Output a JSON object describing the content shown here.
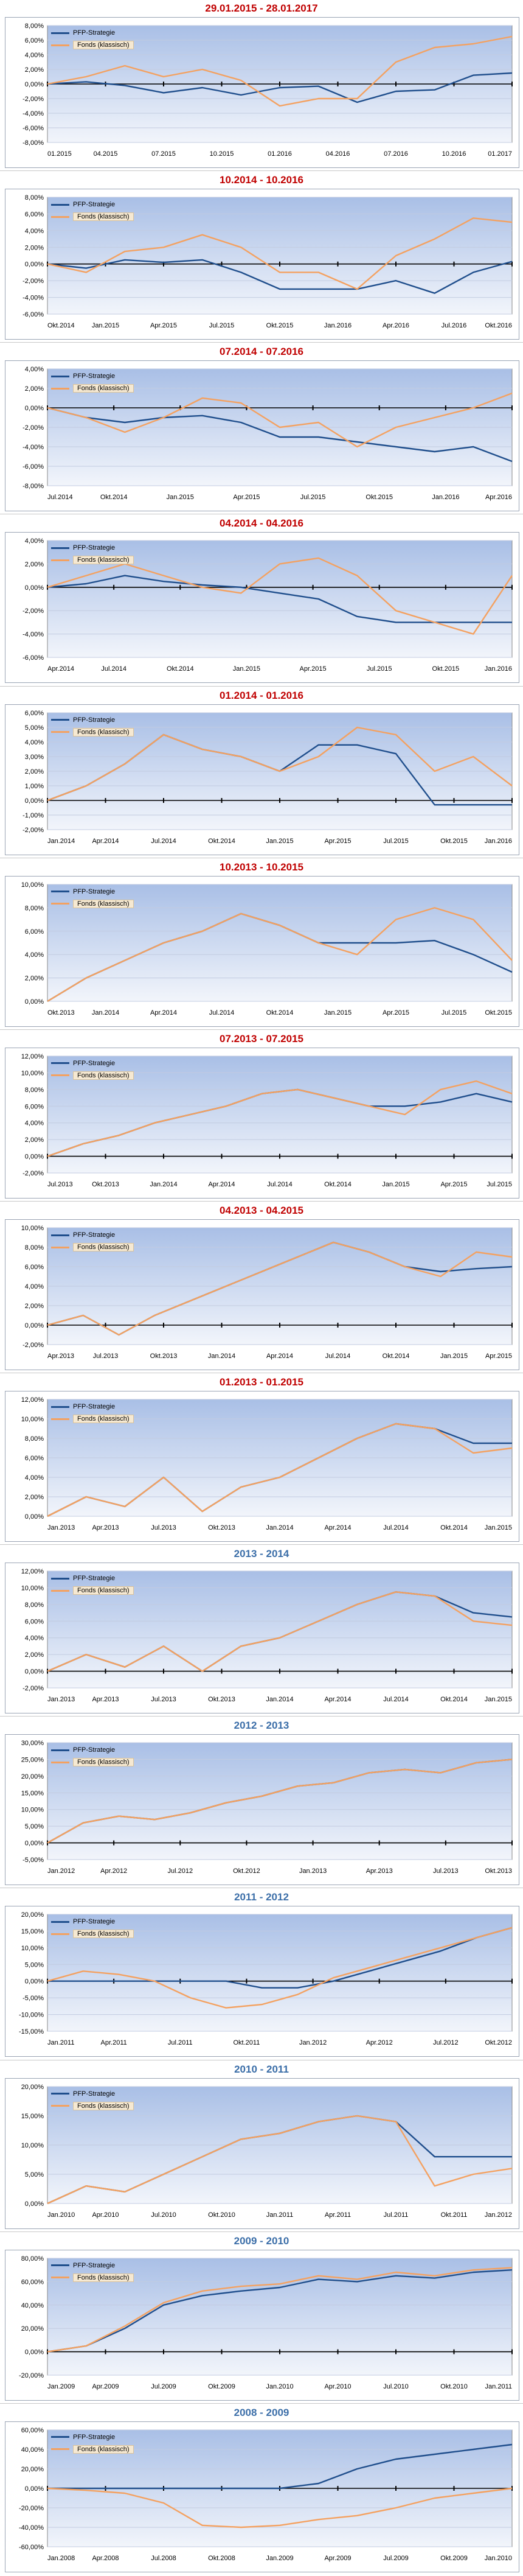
{
  "colors": {
    "strategy": "#1f4e8c",
    "fund": "#f4a160",
    "title_red": "#c00000",
    "title_blue": "#3b6ea8"
  },
  "chart_data": [
    {
      "type": "line",
      "title": "29.01.2015 - 28.01.2017",
      "title_color": "#c00000",
      "x_labels": [
        "01.2015",
        "04.2015",
        "07.2015",
        "10.2015",
        "01.2016",
        "04.2016",
        "07.2016",
        "10.2016",
        "01.2017"
      ],
      "y_ticks": [
        "8,00%",
        "6,00%",
        "4,00%",
        "2,00%",
        "0,00%",
        "-2,00%",
        "-4,00%",
        "-6,00%",
        "-8,00%"
      ],
      "ylim": [
        -8,
        8
      ],
      "zero_line": true,
      "legend": "top-left",
      "series": [
        {
          "name": "PFP-Strategie",
          "values": [
            0,
            0.3,
            -0.2,
            -1.2,
            -0.5,
            -1.5,
            -0.5,
            -0.3,
            -2.5,
            -1,
            -0.8,
            1.2,
            1.5
          ]
        },
        {
          "name": "Fonds (klassisch)",
          "values": [
            0,
            1,
            2.5,
            1,
            2,
            0.5,
            -3,
            -2,
            -2,
            3,
            5,
            5.5,
            6.5
          ]
        }
      ]
    },
    {
      "type": "line",
      "title": "10.2014 - 10.2016",
      "title_color": "#c00000",
      "x_labels": [
        "Okt.2014",
        "Jan.2015",
        "Apr.2015",
        "Jul.2015",
        "Okt.2015",
        "Jan.2016",
        "Apr.2016",
        "Jul.2016",
        "Okt.2016"
      ],
      "y_ticks": [
        "8,00%",
        "6,00%",
        "4,00%",
        "2,00%",
        "0,00%",
        "-2,00%",
        "-4,00%",
        "-6,00%"
      ],
      "ylim": [
        -6,
        8
      ],
      "zero_line": true,
      "legend": "top-left",
      "series": [
        {
          "name": "PFP-Strategie",
          "values": [
            0,
            -0.5,
            0.5,
            0.2,
            0.5,
            -1,
            -3,
            -3,
            -3,
            -2,
            -3.5,
            -1,
            0.3
          ]
        },
        {
          "name": "Fonds (klassisch)",
          "values": [
            0,
            -1,
            1.5,
            2,
            3.5,
            2,
            -1,
            -1,
            -3,
            1,
            3,
            5.5,
            5
          ]
        }
      ]
    },
    {
      "type": "line",
      "title": "07.2014 - 07.2016",
      "title_color": "#c00000",
      "x_labels": [
        "Jul.2014",
        "Okt.2014",
        "Jan.2015",
        "Apr.2015",
        "Jul.2015",
        "Okt.2015",
        "Jan.2016",
        "Apr.2016"
      ],
      "y_ticks": [
        "4,00%",
        "2,00%",
        "0,00%",
        "-2,00%",
        "-4,00%",
        "-6,00%",
        "-8,00%"
      ],
      "ylim": [
        -8,
        4
      ],
      "zero_line": true,
      "legend": "top-left",
      "series": [
        {
          "name": "PFP-Strategie",
          "values": [
            0,
            -1,
            -1.5,
            -1,
            -0.8,
            -1.5,
            -3,
            -3,
            -3.5,
            -4,
            -4.5,
            -4,
            -5.5
          ]
        },
        {
          "name": "Fonds (klassisch)",
          "values": [
            0,
            -1,
            -2.5,
            -1,
            1,
            0.5,
            -2,
            -1.5,
            -4,
            -2,
            -1,
            0,
            1.5
          ]
        }
      ]
    },
    {
      "type": "line",
      "title": "04.2014 - 04.2016",
      "title_color": "#c00000",
      "x_labels": [
        "Apr.2014",
        "Jul.2014",
        "Okt.2014",
        "Jan.2015",
        "Apr.2015",
        "Jul.2015",
        "Okt.2015",
        "Jan.2016"
      ],
      "y_ticks": [
        "4,00%",
        "2,00%",
        "0,00%",
        "-2,00%",
        "-4,00%",
        "-6,00%"
      ],
      "ylim": [
        -6,
        4
      ],
      "zero_line": true,
      "legend": "top-left",
      "series": [
        {
          "name": "PFP-Strategie",
          "values": [
            0,
            0.3,
            1,
            0.5,
            0.2,
            0,
            -0.5,
            -1,
            -2.5,
            -3,
            -3,
            -3,
            -3
          ]
        },
        {
          "name": "Fonds (klassisch)",
          "values": [
            0,
            1,
            2,
            1,
            0,
            -0.5,
            2,
            2.5,
            1,
            -2,
            -3,
            -4,
            1
          ]
        }
      ]
    },
    {
      "type": "line",
      "title": "01.2014 - 01.2016",
      "title_color": "#c00000",
      "x_labels": [
        "Jan.2014",
        "Apr.2014",
        "Jul.2014",
        "Okt.2014",
        "Jan.2015",
        "Apr.2015",
        "Jul.2015",
        "Okt.2015",
        "Jan.2016"
      ],
      "y_ticks": [
        "6,00%",
        "5,00%",
        "4,00%",
        "3,00%",
        "2,00%",
        "1,00%",
        "0,00%",
        "-1,00%",
        "-2,00%"
      ],
      "ylim": [
        -2,
        6
      ],
      "zero_line": true,
      "legend": "top-left",
      "series": [
        {
          "name": "PFP-Strategie",
          "values": [
            0,
            1,
            2.5,
            4.5,
            3.5,
            3,
            2,
            3.8,
            3.8,
            3.2,
            -0.3,
            -0.3,
            -0.3
          ]
        },
        {
          "name": "Fonds (klassisch)",
          "values": [
            0,
            1,
            2.5,
            4.5,
            3.5,
            3,
            2,
            3,
            5,
            4.5,
            2,
            3,
            1
          ]
        }
      ]
    },
    {
      "type": "line",
      "title": "10.2013 - 10.2015",
      "title_color": "#c00000",
      "x_labels": [
        "Okt.2013",
        "Jan.2014",
        "Apr.2014",
        "Jul.2014",
        "Okt.2014",
        "Jan.2015",
        "Apr.2015",
        "Jul.2015",
        "Okt.2015"
      ],
      "y_ticks": [
        "10,00%",
        "8,00%",
        "6,00%",
        "4,00%",
        "2,00%",
        "0,00%"
      ],
      "ylim": [
        0,
        10
      ],
      "zero_line": false,
      "legend": "top-left",
      "series": [
        {
          "name": "PFP-Strategie",
          "values": [
            0,
            2,
            3.5,
            5,
            6,
            7.5,
            6.5,
            5,
            5,
            5,
            5.2,
            4,
            2.5
          ]
        },
        {
          "name": "Fonds (klassisch)",
          "values": [
            0,
            2,
            3.5,
            5,
            6,
            7.5,
            6.5,
            5,
            4,
            7,
            8,
            7,
            3.5
          ]
        }
      ]
    },
    {
      "type": "line",
      "title": "07.2013 - 07.2015",
      "title_color": "#c00000",
      "x_labels": [
        "Jul.2013",
        "Okt.2013",
        "Jan.2014",
        "Apr.2014",
        "Jul.2014",
        "Okt.2014",
        "Jan.2015",
        "Apr.2015",
        "Jul.2015"
      ],
      "y_ticks": [
        "12,00%",
        "10,00%",
        "8,00%",
        "6,00%",
        "4,00%",
        "2,00%",
        "0,00%",
        "-2,00%"
      ],
      "ylim": [
        -2,
        12
      ],
      "zero_line": true,
      "legend": "top-left",
      "series": [
        {
          "name": "PFP-Strategie",
          "values": [
            0,
            1.5,
            2.5,
            4,
            5,
            6,
            7.5,
            8,
            7,
            6,
            6,
            6.5,
            7.5,
            6.5
          ]
        },
        {
          "name": "Fonds (klassisch)",
          "values": [
            0,
            1.5,
            2.5,
            4,
            5,
            6,
            7.5,
            8,
            7,
            6,
            5,
            8,
            9,
            7.5
          ]
        }
      ]
    },
    {
      "type": "line",
      "title": "04.2013 - 04.2015",
      "title_color": "#c00000",
      "x_labels": [
        "Apr.2013",
        "Jul.2013",
        "Okt.2013",
        "Jan.2014",
        "Apr.2014",
        "Jul.2014",
        "Okt.2014",
        "Jan.2015",
        "Apr.2015"
      ],
      "y_ticks": [
        "10,00%",
        "8,00%",
        "6,00%",
        "4,00%",
        "2,00%",
        "0,00%",
        "-2,00%"
      ],
      "ylim": [
        -2,
        10
      ],
      "zero_line": true,
      "legend": "top-left",
      "series": [
        {
          "name": "PFP-Strategie",
          "values": [
            0,
            1,
            -1,
            1,
            2.5,
            4,
            5.5,
            7,
            8.5,
            7.5,
            6,
            5.5,
            5.8,
            6
          ]
        },
        {
          "name": "Fonds (klassisch)",
          "values": [
            0,
            1,
            -1,
            1,
            2.5,
            4,
            5.5,
            7,
            8.5,
            7.5,
            6,
            5,
            7.5,
            7
          ]
        }
      ]
    },
    {
      "type": "line",
      "title": "01.2013 - 01.2015",
      "title_color": "#c00000",
      "x_labels": [
        "Jan.2013",
        "Apr.2013",
        "Jul.2013",
        "Okt.2013",
        "Jan.2014",
        "Apr.2014",
        "Jul.2014",
        "Okt.2014",
        "Jan.2015"
      ],
      "y_ticks": [
        "12,00%",
        "10,00%",
        "8,00%",
        "6,00%",
        "4,00%",
        "2,00%",
        "0,00%"
      ],
      "ylim": [
        0,
        12
      ],
      "zero_line": false,
      "legend": "top-left",
      "series": [
        {
          "name": "PFP-Strategie",
          "values": [
            0,
            2,
            1,
            4,
            0.5,
            3,
            4,
            6,
            8,
            9.5,
            9,
            7.5,
            7.5
          ]
        },
        {
          "name": "Fonds (klassisch)",
          "values": [
            0,
            2,
            1,
            4,
            0.5,
            3,
            4,
            6,
            8,
            9.5,
            9,
            6.5,
            7
          ]
        }
      ]
    },
    {
      "type": "line",
      "title": "2013 - 2014",
      "title_color": "#3b6ea8",
      "x_labels": [
        "Jan.2013",
        "Apr.2013",
        "Jul.2013",
        "Okt.2013",
        "Jan.2014",
        "Apr.2014",
        "Jul.2014",
        "Okt.2014",
        "Jan.2015"
      ],
      "y_ticks": [
        "12,00%",
        "10,00%",
        "8,00%",
        "6,00%",
        "4,00%",
        "2,00%",
        "0,00%",
        "-2,00%"
      ],
      "ylim": [
        -2,
        12
      ],
      "zero_line": true,
      "legend": "top-left",
      "series": [
        {
          "name": "PFP-Strategie",
          "values": [
            0,
            2,
            0.5,
            3,
            0,
            3,
            4,
            6,
            8,
            9.5,
            9,
            7,
            6.5
          ]
        },
        {
          "name": "Fonds (klassisch)",
          "values": [
            0,
            2,
            0.5,
            3,
            0,
            3,
            4,
            6,
            8,
            9.5,
            9,
            6,
            5.5
          ]
        }
      ]
    },
    {
      "type": "line",
      "title": "2012 - 2013",
      "title_color": "#3b6ea8",
      "x_labels": [
        "Jan.2012",
        "Apr.2012",
        "Jul.2012",
        "Okt.2012",
        "Jan.2013",
        "Apr.2013",
        "Jul.2013",
        "Okt.2013"
      ],
      "y_ticks": [
        "30,00%",
        "25,00%",
        "20,00%",
        "15,00%",
        "10,00%",
        "5,00%",
        "0,00%",
        "-5,00%"
      ],
      "ylim": [
        -5,
        30
      ],
      "zero_line": true,
      "legend": "top-left",
      "series": [
        {
          "name": "PFP-Strategie",
          "values": [
            0,
            6,
            8,
            7,
            9,
            12,
            14,
            17,
            18,
            21,
            22,
            21,
            24,
            25
          ]
        },
        {
          "name": "Fonds (klassisch)",
          "values": [
            0,
            6,
            8,
            7,
            9,
            12,
            14,
            17,
            18,
            21,
            22,
            21,
            24,
            25
          ]
        }
      ]
    },
    {
      "type": "line",
      "title": "2011 - 2012",
      "title_color": "#3b6ea8",
      "x_labels": [
        "Jan.2011",
        "Apr.2011",
        "Jul.2011",
        "Okt.2011",
        "Jan.2012",
        "Apr.2012",
        "Jul.2012",
        "Okt.2012"
      ],
      "y_ticks": [
        "20,00%",
        "15,00%",
        "10,00%",
        "5,00%",
        "0,00%",
        "-5,00%",
        "-10,00%",
        "-15,00%"
      ],
      "ylim": [
        -15,
        20
      ],
      "zero_line": true,
      "legend": "top-left",
      "series": [
        {
          "name": "PFP-Strategie",
          "values": [
            0,
            0,
            0,
            0,
            0,
            0,
            -2,
            -2,
            0,
            3,
            6,
            9,
            13,
            16
          ]
        },
        {
          "name": "Fonds (klassisch)",
          "values": [
            0,
            3,
            2,
            0,
            -5,
            -8,
            -7,
            -4,
            1,
            4,
            7,
            10,
            13,
            16
          ]
        }
      ]
    },
    {
      "type": "line",
      "title": "2010 - 2011",
      "title_color": "#3b6ea8",
      "x_labels": [
        "Jan.2010",
        "Apr.2010",
        "Jul.2010",
        "Okt.2010",
        "Jan.2011",
        "Apr.2011",
        "Jul.2011",
        "Okt.2011",
        "Jan.2012"
      ],
      "y_ticks": [
        "20,00%",
        "15,00%",
        "10,00%",
        "5,00%",
        "0,00%"
      ],
      "ylim": [
        0,
        20
      ],
      "zero_line": false,
      "legend": "top-left",
      "series": [
        {
          "name": "PFP-Strategie",
          "values": [
            0,
            3,
            2,
            5,
            8,
            11,
            12,
            14,
            15,
            14,
            8,
            8,
            8
          ]
        },
        {
          "name": "Fonds (klassisch)",
          "values": [
            0,
            3,
            2,
            5,
            8,
            11,
            12,
            14,
            15,
            14,
            3,
            5,
            6
          ]
        }
      ]
    },
    {
      "type": "line",
      "title": "2009 - 2010",
      "title_color": "#3b6ea8",
      "x_labels": [
        "Jan.2009",
        "Apr.2009",
        "Jul.2009",
        "Okt.2009",
        "Jan.2010",
        "Apr.2010",
        "Jul.2010",
        "Okt.2010",
        "Jan.2011"
      ],
      "y_ticks": [
        "80,00%",
        "60,00%",
        "40,00%",
        "20,00%",
        "0,00%",
        "-20,00%"
      ],
      "ylim": [
        -20,
        80
      ],
      "zero_line": true,
      "legend": "top-left",
      "series": [
        {
          "name": "PFP-Strategie",
          "values": [
            0,
            5,
            20,
            40,
            48,
            52,
            55,
            62,
            60,
            65,
            63,
            68,
            70
          ]
        },
        {
          "name": "Fonds (klassisch)",
          "values": [
            0,
            5,
            22,
            42,
            52,
            56,
            58,
            65,
            62,
            68,
            65,
            70,
            72
          ]
        }
      ]
    },
    {
      "type": "line",
      "title": "2008 - 2009",
      "title_color": "#3b6ea8",
      "x_labels": [
        "Jan.2008",
        "Apr.2008",
        "Jul.2008",
        "Okt.2008",
        "Jan.2009",
        "Apr.2009",
        "Jul.2009",
        "Okt.2009",
        "Jan.2010"
      ],
      "y_ticks": [
        "60,00%",
        "40,00%",
        "20,00%",
        "0,00%",
        "-20,00%",
        "-40,00%",
        "-60,00%"
      ],
      "ylim": [
        -60,
        60
      ],
      "zero_line": true,
      "legend": "top-left",
      "series": [
        {
          "name": "PFP-Strategie",
          "values": [
            0,
            0,
            0,
            0,
            0,
            0,
            0,
            5,
            20,
            30,
            35,
            40,
            45
          ]
        },
        {
          "name": "Fonds (klassisch)",
          "values": [
            0,
            -2,
            -5,
            -15,
            -38,
            -40,
            -38,
            -32,
            -28,
            -20,
            -10,
            -5,
            0
          ]
        }
      ]
    }
  ]
}
